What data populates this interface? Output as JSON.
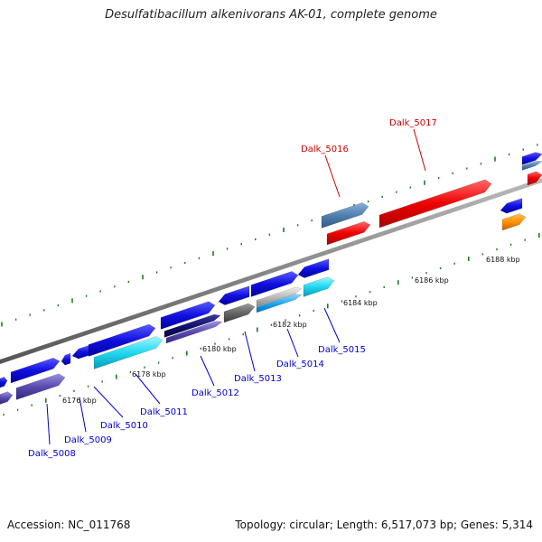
{
  "title": "Desulfatibacillum alkenivorans AK-01, complete genome",
  "footer": {
    "accession": "Accession: NC_011768",
    "summary": "Topology: circular; Length: 6,517,073 bp; Genes: 5,314"
  },
  "scale_labels": [
    "6176 kbp",
    "6178 kbp",
    "6180 kbp",
    "6182 kbp",
    "6184 kbp",
    "6186 kbp",
    "6188 kbp"
  ],
  "gene_labels": [
    {
      "name": "Dalk_5008",
      "color": "#0000cc"
    },
    {
      "name": "Dalk_5009",
      "color": "#0000cc"
    },
    {
      "name": "Dalk_5010",
      "color": "#0000cc"
    },
    {
      "name": "Dalk_5011",
      "color": "#0000cc"
    },
    {
      "name": "Dalk_5012",
      "color": "#0000cc"
    },
    {
      "name": "Dalk_5013",
      "color": "#0000cc"
    },
    {
      "name": "Dalk_5014",
      "color": "#0000cc"
    },
    {
      "name": "Dalk_5015",
      "color": "#0000cc"
    },
    {
      "name": "Dalk_5016",
      "color": "#cc0000"
    },
    {
      "name": "Dalk_5017",
      "color": "#cc0000"
    }
  ]
}
